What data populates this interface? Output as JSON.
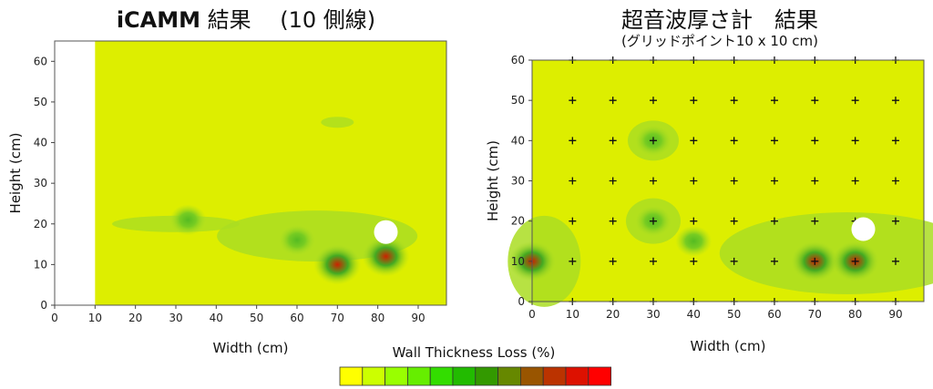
{
  "left_panel": {
    "title_bold": "iCAMM",
    "title_rest": " 結果 　(10 側線)"
  },
  "right_panel": {
    "title": "超音波厚さ計　結果",
    "subtitle": "(グリッドポイント10 x 10 cm)"
  },
  "legend": {
    "title": "Wall Thickness Loss (%)",
    "colors": [
      "#ffff00",
      "#ccff00",
      "#99ff00",
      "#66ee00",
      "#33dd00",
      "#22bb00",
      "#339900",
      "#668800",
      "#995500",
      "#bb3300",
      "#dd1100",
      "#ff0000"
    ]
  },
  "colors": {
    "background_fill": "#ddee00",
    "low": "#aadd22",
    "mid": "#55bb22",
    "high": "#cc2200",
    "marker": "#ffffff"
  },
  "chart_data": [
    {
      "type": "heatmap",
      "title": "iCAMM 結果 (10 側線)",
      "xlabel": "Width (cm)",
      "ylabel": "Height (cm)",
      "xlim": [
        0,
        97
      ],
      "ylim": [
        0,
        65
      ],
      "xticks": [
        0,
        10,
        20,
        30,
        40,
        50,
        60,
        70,
        80,
        90
      ],
      "yticks": [
        0,
        10,
        20,
        30,
        40,
        50,
        60
      ],
      "data_region_x": [
        10,
        97
      ],
      "hotspots": [
        {
          "x": 70,
          "y": 10,
          "level": "high"
        },
        {
          "x": 82,
          "y": 12,
          "level": "high"
        },
        {
          "x": 33,
          "y": 21,
          "level": "mid"
        },
        {
          "x": 60,
          "y": 16,
          "level": "mid"
        }
      ],
      "marker": {
        "x": 82,
        "y": 18
      }
    },
    {
      "type": "heatmap",
      "title": "超音波厚さ計　結果",
      "subtitle": "(グリッドポイント10 x 10 cm)",
      "xlabel": "Width (cm)",
      "ylabel": "Height (cm)",
      "xlim": [
        0,
        97
      ],
      "ylim": [
        0,
        60
      ],
      "xticks": [
        0,
        10,
        20,
        30,
        40,
        50,
        60,
        70,
        80,
        90
      ],
      "yticks": [
        0,
        10,
        20,
        30,
        40,
        50,
        60
      ],
      "grid_points_x": [
        10,
        20,
        30,
        40,
        50,
        60,
        70,
        80,
        90
      ],
      "grid_points_y": [
        0,
        10,
        20,
        30,
        40,
        50,
        60
      ],
      "hotspots": [
        {
          "x": 70,
          "y": 10,
          "level": "high"
        },
        {
          "x": 80,
          "y": 10,
          "level": "high"
        },
        {
          "x": 0,
          "y": 10,
          "level": "high"
        },
        {
          "x": 30,
          "y": 40,
          "level": "mid"
        },
        {
          "x": 30,
          "y": 20,
          "level": "mid"
        },
        {
          "x": 40,
          "y": 15,
          "level": "mid"
        }
      ],
      "marker": {
        "x": 82,
        "y": 18
      }
    }
  ]
}
